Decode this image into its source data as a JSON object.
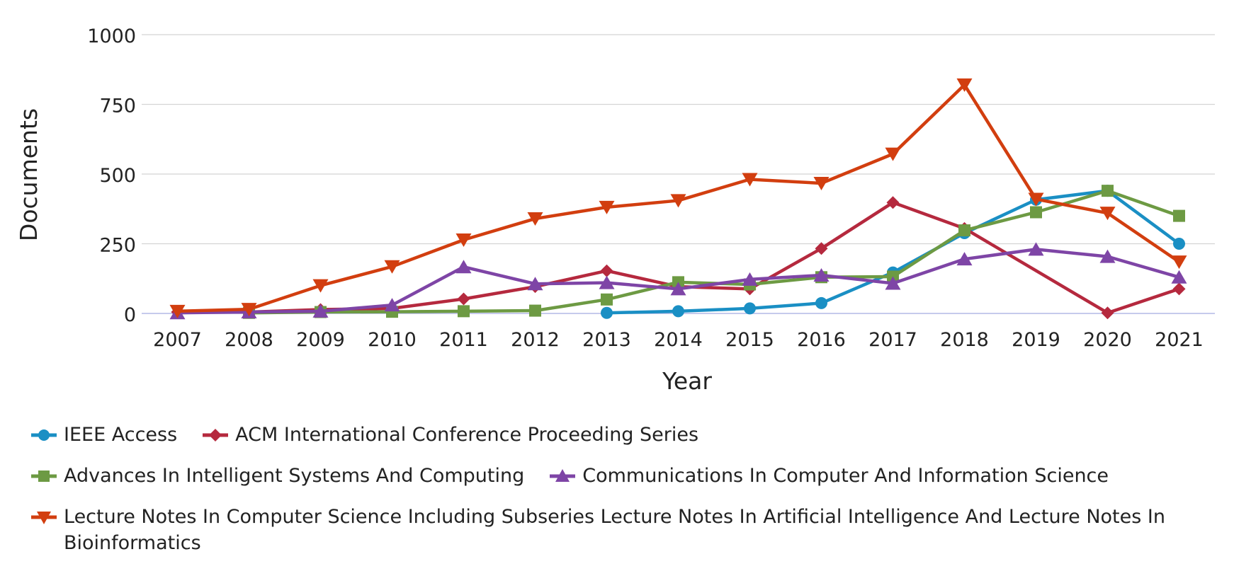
{
  "chart_data": {
    "type": "line",
    "xlabel": "Year",
    "ylabel": "Documents",
    "ylim": [
      0,
      1000
    ],
    "yticks": [
      0,
      250,
      500,
      750,
      1000
    ],
    "categories": [
      "2007",
      "2008",
      "2009",
      "2010",
      "2011",
      "2012",
      "2013",
      "2014",
      "2015",
      "2016",
      "2017",
      "2018",
      "2019",
      "2020",
      "2021"
    ],
    "grid": true,
    "legend_position": "bottom",
    "series": [
      {
        "name": "IEEE Access",
        "color": "#1a8fc4",
        "marker": "circle",
        "values": [
          null,
          null,
          null,
          null,
          null,
          null,
          2,
          8,
          18,
          37,
          147,
          288,
          408,
          440,
          250
        ]
      },
      {
        "name": "ACM International Conference Proceeding Series",
        "color": "#b5293e",
        "marker": "diamond",
        "values": [
          5,
          5,
          14,
          18,
          52,
          96,
          153,
          96,
          88,
          233,
          398,
          305,
          null,
          2,
          88
        ]
      },
      {
        "name": "Advances In Intelligent Systems And Computing",
        "color": "#6d9a43",
        "marker": "square",
        "values": [
          null,
          2,
          5,
          6,
          8,
          10,
          50,
          112,
          104,
          130,
          132,
          298,
          363,
          440,
          350
        ]
      },
      {
        "name": "Communications In Computer And Information Science",
        "color": "#7e45a6",
        "marker": "triangle-up",
        "values": [
          2,
          5,
          8,
          30,
          167,
          106,
          110,
          88,
          122,
          137,
          108,
          195,
          230,
          204,
          130
        ]
      },
      {
        "name": "Lecture Notes In Computer Science Including Subseries Lecture Notes In Artificial Intelligence And Lecture Notes In Bioinformatics",
        "color": "#d23e0f",
        "marker": "triangle-down",
        "values": [
          8,
          15,
          100,
          168,
          264,
          340,
          381,
          405,
          481,
          467,
          572,
          820,
          410,
          360,
          185
        ]
      }
    ]
  }
}
